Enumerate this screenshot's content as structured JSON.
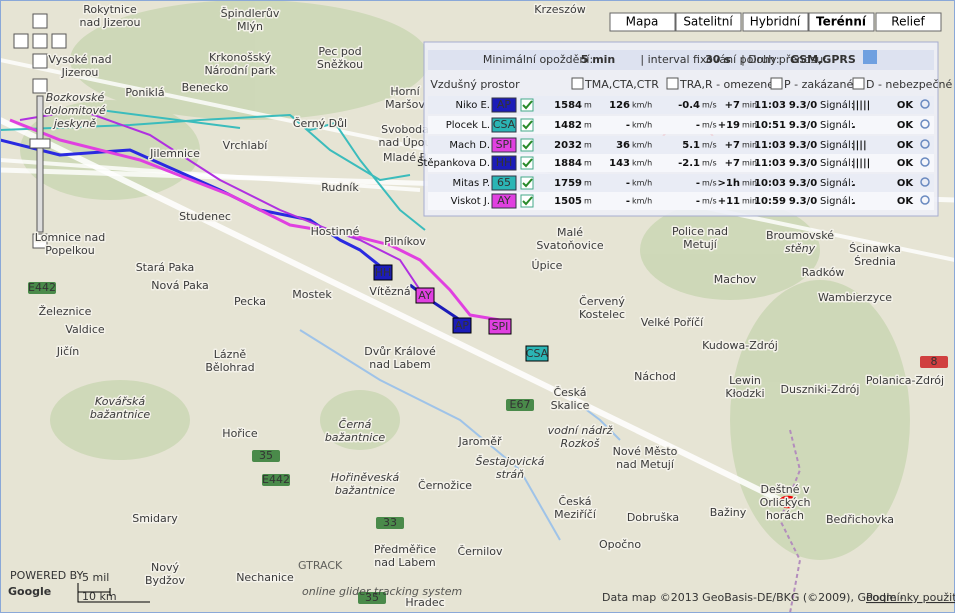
{
  "map_types": [
    "Mapa",
    "Satelitní",
    "Hybridní",
    "Terénní",
    "Relief"
  ],
  "active_map_type": 3,
  "panel": {
    "header": [
      "Minimální opoždění:",
      "5 min",
      "| interval fixování polohy:",
      "30 s",
      "| Druh přenosu:",
      "GSM,GPRS"
    ],
    "airspace": [
      "Vzdušný prostor",
      "TMA,CTA,CTR",
      "TRA,R - omezené",
      "P - zakázané",
      "D - nebezpečné"
    ],
    "units": [
      "m",
      "km/h",
      "m/s",
      "min",
      "Signál:"
    ],
    "rows": [
      {
        "name": "Niko E.",
        "tag": "AP",
        "color": "#1c1cb8",
        "altitude": "1584",
        "speed": "126",
        "vario": "-0.4",
        "age": "+7",
        "time": "11:03",
        "gps": "9.3/0",
        "signal": "|||||",
        "status": "OK"
      },
      {
        "name": "Plocek L.",
        "tag": "CSA",
        "color": "#2bb5b5",
        "altitude": "1482",
        "speed": "-",
        "vario": "-",
        "age": "+19",
        "time": "10:51",
        "gps": "9.3/0",
        "signal": ".",
        "status": "OK"
      },
      {
        "name": "Mach D.",
        "tag": "SPI",
        "color": "#e040e0",
        "altitude": "2032",
        "speed": "36",
        "vario": "5.1",
        "age": "+7",
        "time": "11:03",
        "gps": "9.3/0",
        "signal": "||||",
        "status": "OK"
      },
      {
        "name": "Štěpankova D.",
        "tag": "HH",
        "color": "#1c1cb8",
        "altitude": "1884",
        "speed": "143",
        "vario": "-2.1",
        "age": "+7",
        "time": "11:03",
        "gps": "9.3/0",
        "signal": "|||||",
        "status": "OK"
      },
      {
        "name": "Mitas P.",
        "tag": "65",
        "color": "#2bb5b5",
        "altitude": "1759",
        "speed": "-",
        "vario": "-",
        "age": ">1h",
        "time": "10:03",
        "gps": "9.3/0",
        "signal": ".",
        "status": "OK"
      },
      {
        "name": "Viskot J.",
        "tag": "AY",
        "color": "#e040e0",
        "altitude": "1505",
        "speed": "-",
        "vario": "-",
        "age": "+11",
        "time": "10:59",
        "gps": "9.3/0",
        "signal": ".",
        "status": "OK"
      }
    ]
  },
  "markers": [
    {
      "tag": "HH",
      "color": "#1c1cb8"
    },
    {
      "tag": "AY",
      "color": "#e040e0"
    },
    {
      "tag": "AP",
      "color": "#1c1cb8"
    },
    {
      "tag": "SPI",
      "color": "#e040e0"
    },
    {
      "tag": "CSA",
      "color": "#2bb5b5"
    }
  ],
  "places": [
    [
      "Krzeszów"
    ],
    [
      "Rokytnice",
      "nad Jizerou"
    ],
    [
      "Špindlerův",
      "Mlýn"
    ],
    [
      "Vysoké nad",
      "Jizerou"
    ],
    [
      "Krkonošský",
      "Národní park"
    ],
    [
      "Pec pod",
      "Sněžkou"
    ],
    [
      "Poniklá"
    ],
    [
      "Benecko"
    ],
    [
      "Horní",
      "Maršov"
    ],
    [
      "Bozkovské",
      "dolomitové",
      "jeskyně"
    ],
    [
      "Černý Důl"
    ],
    [
      "Svoboda",
      "nad Úpou"
    ],
    [
      "Vrchlabí"
    ],
    [
      "Jilemnice"
    ],
    [
      "Mladé B"
    ],
    [
      "Rudník"
    ],
    [
      "Studenec"
    ],
    [
      "Hostinné"
    ],
    [
      "Pilníkov"
    ],
    [
      "Lomnice nad",
      "Popelkou"
    ],
    [
      "Stará Paka"
    ],
    [
      "Nová Paka"
    ],
    [
      "Mostek"
    ],
    [
      "Vítězná"
    ],
    [
      "Pecka"
    ],
    [
      "Železnice"
    ],
    [
      "Valdice"
    ],
    [
      "Jičín"
    ],
    [
      "Lázně",
      "Bělohrad"
    ],
    [
      "Dvůr Králové",
      "nad Labem"
    ],
    [
      "Malé",
      "Svatoňovice"
    ],
    [
      "Úpice"
    ],
    [
      "Police nad",
      "Metují"
    ],
    [
      "Broumovské",
      "stěny"
    ],
    [
      "Ścinawka",
      "Średnia"
    ],
    [
      "Radków"
    ],
    [
      "Machov"
    ],
    [
      "Wambierzyce"
    ],
    [
      "Červený",
      "Kostelec"
    ],
    [
      "Velké Poříčí"
    ],
    [
      "Kudowa-Zdrój"
    ],
    [
      "Náchod"
    ],
    [
      "Lewin",
      "Kłodzki"
    ],
    [
      "Duszniki-Zdrój"
    ],
    [
      "Polanica-Zdrój"
    ],
    [
      "Česká",
      "Skalice"
    ],
    [
      "vodní nádrž",
      "Rozkoš"
    ],
    [
      "Kovářská",
      "bažantnice"
    ],
    [
      "Hořice"
    ],
    [
      "Černá",
      "bažantnice"
    ],
    [
      "Jaroměř"
    ],
    [
      "Šestajovická",
      "stráň"
    ],
    [
      "Nové Město",
      "nad Metují"
    ],
    [
      "Hořiněveská",
      "bažantnice"
    ],
    [
      "Černožice"
    ],
    [
      "Smidary"
    ],
    [
      "Česká",
      "Meziříčí"
    ],
    [
      "Dobruška"
    ],
    [
      "Bažiny"
    ],
    [
      "Deštné v",
      "Orlických",
      "horách"
    ],
    [
      "Bedřichovka"
    ],
    [
      "Opočno"
    ],
    [
      "Předměřice",
      "nad Labem"
    ],
    [
      "Černilov"
    ],
    [
      "Nový",
      "Bydžov"
    ],
    [
      "Nechanice"
    ],
    [
      "Hradec"
    ]
  ],
  "roads": [
    "E442",
    "35",
    "E442",
    "E67",
    "33",
    "8",
    "35"
  ],
  "scale": [
    "5 mil",
    "10 km"
  ],
  "google": [
    "POWERED BY",
    "Google"
  ],
  "logo": [
    "GTRACK",
    "online glider tracking system"
  ],
  "attribution": [
    "Data map ©2013 GeoBasis-DE/BKG (©2009), Google -",
    "Podmínky použití"
  ]
}
